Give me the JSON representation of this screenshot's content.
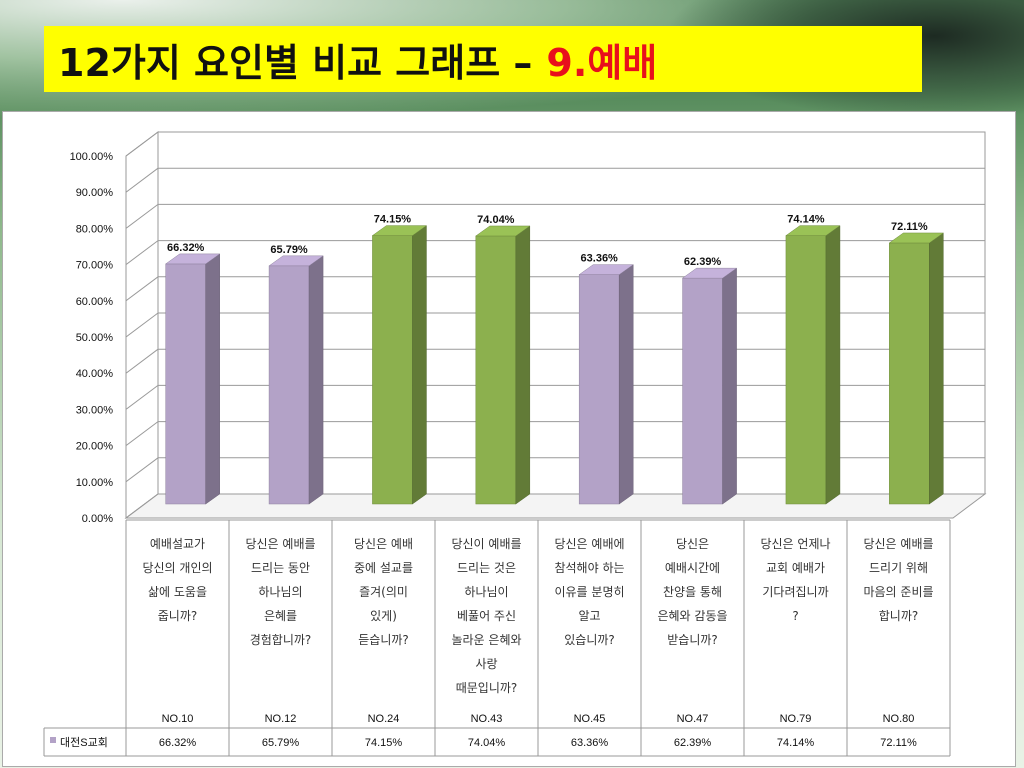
{
  "header": {
    "title_main": "12가지 요인별 비교 그래프 –",
    "title_highlight": "9.예배"
  },
  "chart_data": {
    "type": "bar",
    "ylim": [
      0,
      100
    ],
    "ytick_labels": [
      "0.00%",
      "10.00%",
      "20.00%",
      "30.00%",
      "40.00%",
      "50.00%",
      "60.00%",
      "70.00%",
      "80.00%",
      "90.00%",
      "100.00%"
    ],
    "grid": true,
    "legend_position": "bottom-left",
    "categories": [
      [
        "예배설교가",
        "당신의 개인의",
        "삶에 도움을",
        "줍니까?"
      ],
      [
        "당신은 예배를",
        "드리는 동안",
        "하나님의",
        "은혜를",
        "경험합니까?"
      ],
      [
        "당신은 예배",
        "중에 설교를",
        "즐겨(의미",
        "있게)",
        "듣습니까?"
      ],
      [
        "당신이 예배를",
        "드리는 것은",
        "하나님이",
        "베풀어 주신",
        "놀라운 은혜와",
        "사랑",
        "때문입니까?"
      ],
      [
        "당신은 예배에",
        "참석해야 하는",
        "이유를 분명히",
        "알고",
        "있습니까?"
      ],
      [
        "당신은",
        "예배시간에",
        "찬양을 통해",
        "은혜와 감동을",
        "받습니까?"
      ],
      [
        "당신은 언제나",
        "교회 예배가",
        "기다려집니까",
        "?"
      ],
      [
        "당신은 예배를",
        "드리기 위해",
        "마음의 준비를",
        "합니까?"
      ]
    ],
    "question_numbers": [
      "NO.10",
      "NO.12",
      "NO.24",
      "NO.43",
      "NO.45",
      "NO.47",
      "NO.79",
      "NO.80"
    ],
    "series": [
      {
        "name": "대전S교회",
        "values": [
          66.32,
          65.79,
          74.15,
          74.04,
          63.36,
          62.39,
          74.14,
          72.11
        ],
        "labels": [
          "66.32%",
          "65.79%",
          "74.15%",
          "74.04%",
          "63.36%",
          "62.39%",
          "74.14%",
          "72.11%"
        ],
        "bar_colors": [
          "#b3a2c7",
          "#b3a2c7",
          "#8cb04e",
          "#8cb04e",
          "#b3a2c7",
          "#b3a2c7",
          "#8cb04e",
          "#8cb04e"
        ]
      }
    ]
  }
}
